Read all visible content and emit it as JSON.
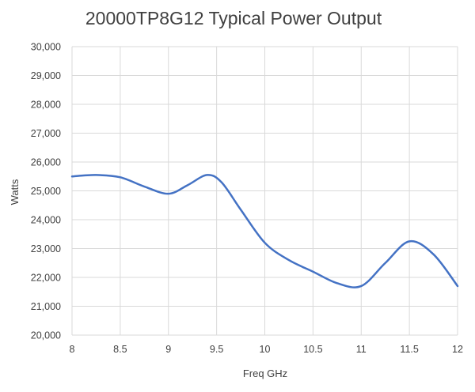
{
  "chart_data": {
    "type": "line",
    "title": "20000TP8G12 Typical Power Output",
    "xlabel": "Freq GHz",
    "ylabel": "Watts",
    "xlim": [
      8,
      12
    ],
    "ylim": [
      20000,
      30000
    ],
    "x_ticks": [
      8,
      8.5,
      9,
      9.5,
      10,
      10.5,
      11,
      11.5,
      12
    ],
    "x_tick_labels": [
      "8",
      "8.5",
      "9",
      "9.5",
      "10",
      "10.5",
      "11",
      "11.5",
      "12"
    ],
    "y_ticks": [
      20000,
      21000,
      22000,
      23000,
      24000,
      25000,
      26000,
      27000,
      28000,
      29000,
      30000
    ],
    "y_tick_labels": [
      "20,000",
      "21,000",
      "22,000",
      "23,000",
      "24,000",
      "25,000",
      "26,000",
      "27,000",
      "28,000",
      "29,000",
      "30,000"
    ],
    "grid": true,
    "legend": "none",
    "series": [
      {
        "color": "#4472c4",
        "x": [
          8,
          8.25,
          8.5,
          8.75,
          9,
          9.2,
          9.4,
          9.55,
          9.75,
          10,
          10.25,
          10.5,
          10.75,
          11,
          11.25,
          11.5,
          11.75,
          12
        ],
        "y": [
          25500,
          25550,
          25470,
          25150,
          24900,
          25200,
          25550,
          25300,
          24350,
          23200,
          22600,
          22200,
          21800,
          21700,
          22500,
          23250,
          22800,
          21700
        ]
      }
    ]
  }
}
